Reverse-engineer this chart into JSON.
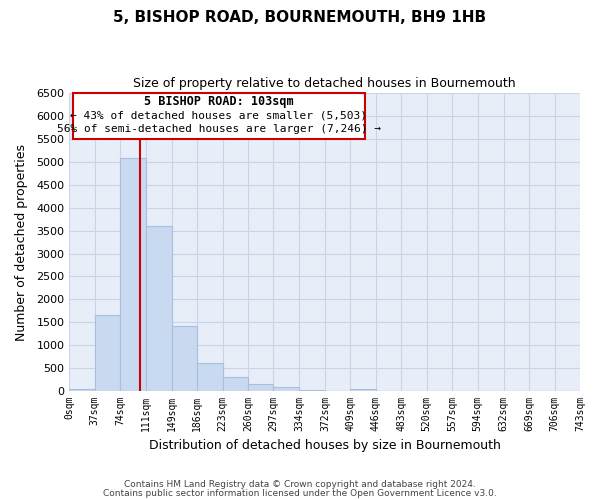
{
  "title": "5, BISHOP ROAD, BOURNEMOUTH, BH9 1HB",
  "subtitle": "Size of property relative to detached houses in Bournemouth",
  "xlabel": "Distribution of detached houses by size in Bournemouth",
  "ylabel": "Number of detached properties",
  "bar_edges": [
    0,
    37,
    74,
    111,
    149,
    186,
    223,
    260,
    297,
    334,
    372,
    409,
    446,
    483,
    520,
    557,
    594,
    632,
    669,
    706,
    743
  ],
  "bar_heights": [
    50,
    1650,
    5080,
    3600,
    1420,
    620,
    305,
    155,
    95,
    30,
    0,
    50,
    0,
    0,
    0,
    0,
    0,
    0,
    0,
    0
  ],
  "bar_color": "#c8d9f0",
  "bar_edge_color": "#a8c0e0",
  "vline_x": 103,
  "vline_color": "#cc0000",
  "ylim": [
    0,
    6500
  ],
  "yticks": [
    0,
    500,
    1000,
    1500,
    2000,
    2500,
    3000,
    3500,
    4000,
    4500,
    5000,
    5500,
    6000,
    6500
  ],
  "xtick_labels": [
    "0sqm",
    "37sqm",
    "74sqm",
    "111sqm",
    "149sqm",
    "186sqm",
    "223sqm",
    "260sqm",
    "297sqm",
    "334sqm",
    "372sqm",
    "409sqm",
    "446sqm",
    "483sqm",
    "520sqm",
    "557sqm",
    "594sqm",
    "632sqm",
    "669sqm",
    "706sqm",
    "743sqm"
  ],
  "annotation_title": "5 BISHOP ROAD: 103sqm",
  "annotation_line1": "← 43% of detached houses are smaller (5,503)",
  "annotation_line2": "56% of semi-detached houses are larger (7,246) →",
  "footer1": "Contains HM Land Registry data © Crown copyright and database right 2024.",
  "footer2": "Contains public sector information licensed under the Open Government Licence v3.0.",
  "background_color": "#ffffff",
  "grid_color": "#c8d4e8",
  "plot_bg_color": "#e8eef8"
}
